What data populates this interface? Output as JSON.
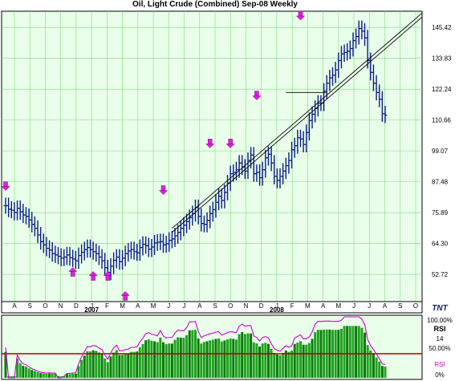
{
  "chart_data": {
    "type": "ohlc",
    "title": "Oil, Light Crude (Combined) Sep-08  Weekly",
    "y_ticks": [
      "145.42",
      "133.83",
      "122.24",
      "110.66",
      "99.07",
      "87.48",
      "75.89",
      "64.30",
      "52.72"
    ],
    "y_tick_values": [
      145.42,
      133.83,
      122.24,
      110.66,
      99.07,
      87.48,
      75.89,
      64.3,
      52.72
    ],
    "ylim": [
      42.5,
      151.5
    ],
    "x_months": [
      "A",
      "S",
      "O",
      "N",
      "D",
      "J",
      "F",
      "M",
      "A",
      "M",
      "J",
      "J",
      "A",
      "S",
      "O",
      "N",
      "D",
      "J",
      "F",
      "M",
      "A",
      "M",
      "J",
      "J",
      "A",
      "S",
      "O"
    ],
    "year_labels": [
      {
        "label": "2007",
        "month_index": 5
      },
      {
        "label": "2008",
        "month_index": 17
      }
    ],
    "grid": true,
    "weekly_ohlc_close": [
      78.5,
      77.2,
      76.8,
      76.0,
      77.5,
      76.2,
      75.0,
      74.5,
      73.2,
      71.5,
      70.0,
      67.5,
      65.0,
      63.8,
      62.5,
      61.8,
      60.5,
      60.0,
      59.5,
      58.8,
      59.2,
      60.0,
      59.0,
      58.5,
      57.8,
      59.8,
      61.0,
      62.0,
      62.8,
      62.0,
      61.2,
      60.5,
      59.2,
      57.8,
      55.2,
      53.5,
      55.8,
      58.0,
      59.2,
      57.5,
      58.8,
      60.5,
      61.5,
      62.0,
      61.2,
      60.8,
      62.8,
      64.0,
      63.5,
      62.2,
      63.0,
      64.5,
      64.8,
      65.0,
      63.8,
      64.2,
      65.5,
      66.0,
      67.2,
      68.5,
      70.0,
      71.2,
      72.5,
      74.0,
      75.5,
      77.8,
      74.5,
      71.8,
      71.5,
      73.0,
      75.5,
      77.0,
      79.8,
      82.0,
      80.5,
      83.5,
      87.0,
      90.5,
      91.0,
      92.0,
      94.5,
      93.0,
      91.5,
      95.5,
      97.5,
      90.5,
      91.0,
      89.0,
      92.0,
      96.5,
      97.8,
      94.5,
      89.5,
      88.0,
      89.5,
      91.5,
      93.5,
      95.5,
      99.5,
      101.0,
      104.0,
      103.5,
      101.5,
      106.0,
      110.5,
      112.8,
      115.0,
      117.0,
      117.0,
      121.5,
      124.5,
      126.5,
      127.5,
      129.5,
      133.0,
      135.5,
      136.0,
      136.5,
      137.5,
      140.5,
      142.0,
      145.0,
      144.0,
      141.5,
      133.0,
      128.5,
      124.5,
      121.0,
      118.5,
      113.0,
      112.5
    ],
    "weekly_range": {
      "low_offset": 3.0,
      "high_offset": 3.0
    },
    "trendlines": [
      {
        "from": {
          "week": 57,
          "value": 68.5
        },
        "to": {
          "week": 110,
          "value": 118.5
        }
      },
      {
        "from": {
          "week": 57,
          "value": 70.0
        },
        "to": {
          "week": 110,
          "value": 120.0
        }
      },
      {
        "from": {
          "week": 96,
          "value": 121.0
        },
        "to": {
          "week": 110,
          "value": 121.0
        }
      }
    ],
    "arrows_down": [
      {
        "week": 0,
        "value": 84.5
      },
      {
        "week": 54,
        "value": 83.0
      },
      {
        "week": 70,
        "value": 100.5
      },
      {
        "week": 77,
        "value": 100.5
      },
      {
        "week": 86,
        "value": 118.5
      },
      {
        "week": 101,
        "value": 148.5
      }
    ],
    "arrows_up": [
      {
        "week": 23,
        "value": 55.0
      },
      {
        "week": 30,
        "value": 53.5
      },
      {
        "week": 35,
        "value": 53.5
      },
      {
        "week": 41,
        "value": 46.0
      }
    ],
    "rsi_panel": {
      "label": "RSI",
      "period": "14",
      "right_labels": [
        "100.00%",
        "RSI",
        "14",
        "50.00%",
        "0%"
      ],
      "legend_label": "RSI"
    },
    "logo": "TNT"
  }
}
